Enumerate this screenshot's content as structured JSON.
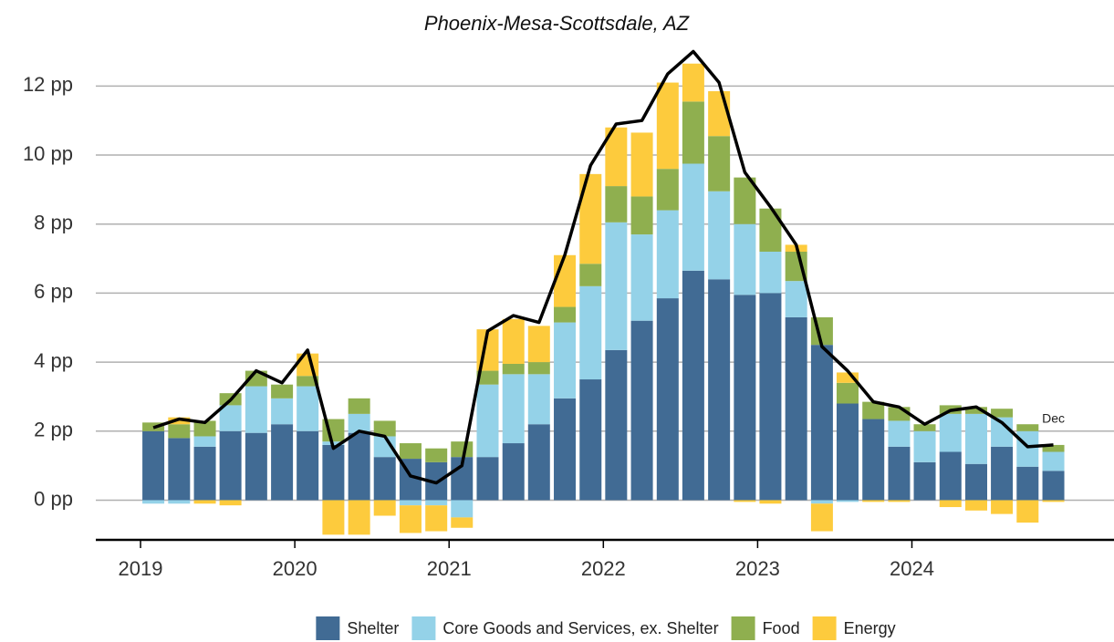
{
  "chart_data": {
    "type": "stacked_bar_line",
    "title": "Phoenix-Mesa-Scottsdale, AZ",
    "x": [
      2019.083,
      2019.25,
      2019.417,
      2019.583,
      2019.75,
      2019.917,
      2020.083,
      2020.25,
      2020.417,
      2020.583,
      2020.75,
      2020.917,
      2021.083,
      2021.25,
      2021.417,
      2021.583,
      2021.75,
      2021.917,
      2022.083,
      2022.25,
      2022.417,
      2022.583,
      2022.75,
      2022.917,
      2023.083,
      2023.25,
      2023.417,
      2023.583,
      2023.75,
      2023.917,
      2024.083,
      2024.25,
      2024.417,
      2024.583,
      2024.75,
      2024.917
    ],
    "series": [
      {
        "name": "Shelter",
        "color": "#416b94",
        "values": [
          2.0,
          1.8,
          1.55,
          2.0,
          1.95,
          2.2,
          2.0,
          1.6,
          1.95,
          1.25,
          1.2,
          1.1,
          1.25,
          1.25,
          1.65,
          2.2,
          2.95,
          3.5,
          4.35,
          5.2,
          5.85,
          6.65,
          6.4,
          5.95,
          6.0,
          5.3,
          4.5,
          2.8,
          2.35,
          1.55,
          1.1,
          1.4,
          1.05,
          1.55,
          0.97,
          0.85
        ]
      },
      {
        "name": "Core Goods and Services, ex. Shelter",
        "color": "#94d2e8",
        "values": [
          -0.1,
          -0.1,
          0.3,
          0.75,
          1.35,
          0.75,
          1.3,
          0.1,
          0.55,
          0.6,
          -0.15,
          -0.15,
          -0.5,
          2.1,
          2.0,
          1.45,
          2.2,
          2.7,
          3.7,
          2.5,
          2.55,
          3.1,
          2.55,
          2.05,
          1.2,
          1.05,
          -0.1,
          -0.05,
          0,
          0.75,
          0.9,
          1.1,
          1.45,
          0.85,
          1.03,
          0.55
        ]
      },
      {
        "name": "Food",
        "color": "#8faf4f",
        "values": [
          0.25,
          0.4,
          0.45,
          0.35,
          0.45,
          0.4,
          0.3,
          0.65,
          0.45,
          0.45,
          0.45,
          0.4,
          0.45,
          0.4,
          0.3,
          0.35,
          0.45,
          0.65,
          1.05,
          1.1,
          1.2,
          1.8,
          1.6,
          1.35,
          1.25,
          0.85,
          0.8,
          0.6,
          0.5,
          0.4,
          0.2,
          0.25,
          0.2,
          0.25,
          0.2,
          0.2
        ]
      },
      {
        "name": "Energy",
        "color": "#fdcb3d",
        "values": [
          0,
          0.2,
          -0.1,
          -0.15,
          0,
          0,
          0.65,
          -1.0,
          -1.0,
          -0.45,
          -0.8,
          -0.75,
          -0.3,
          1.2,
          1.3,
          1.05,
          1.5,
          2.6,
          1.7,
          1.85,
          2.5,
          1.1,
          1.3,
          -0.05,
          -0.1,
          0.2,
          -0.8,
          0.3,
          -0.05,
          -0.05,
          0,
          -0.2,
          -0.3,
          -0.4,
          -0.65,
          -0.05
        ]
      }
    ],
    "line": {
      "color": "#000000",
      "values": [
        2.1,
        2.35,
        2.25,
        2.9,
        3.75,
        3.4,
        4.35,
        1.5,
        2.0,
        1.85,
        0.7,
        0.5,
        1.0,
        4.9,
        5.35,
        5.15,
        7.1,
        9.7,
        10.9,
        11.0,
        12.35,
        13.0,
        12.1,
        9.5,
        8.5,
        7.4,
        4.45,
        3.75,
        2.85,
        2.7,
        2.2,
        2.6,
        2.7,
        2.25,
        1.55,
        1.6
      ]
    },
    "annotation": "Dec",
    "xlim": [
      2018.71,
      2025.31
    ],
    "xticks": [
      2019,
      2020,
      2021,
      2022,
      2023,
      2024
    ],
    "ylim": [
      -1.15,
      13.7
    ],
    "yticks": [
      {
        "value": 0,
        "label": "0 pp"
      },
      {
        "value": 2,
        "label": "2 pp"
      },
      {
        "value": 4,
        "label": "4 pp"
      },
      {
        "value": 6,
        "label": "6 pp"
      },
      {
        "value": 8,
        "label": "8 pp"
      },
      {
        "value": 10,
        "label": "10 pp"
      },
      {
        "value": 12,
        "label": "12 pp"
      }
    ],
    "grid": true,
    "legend": "bottom"
  }
}
